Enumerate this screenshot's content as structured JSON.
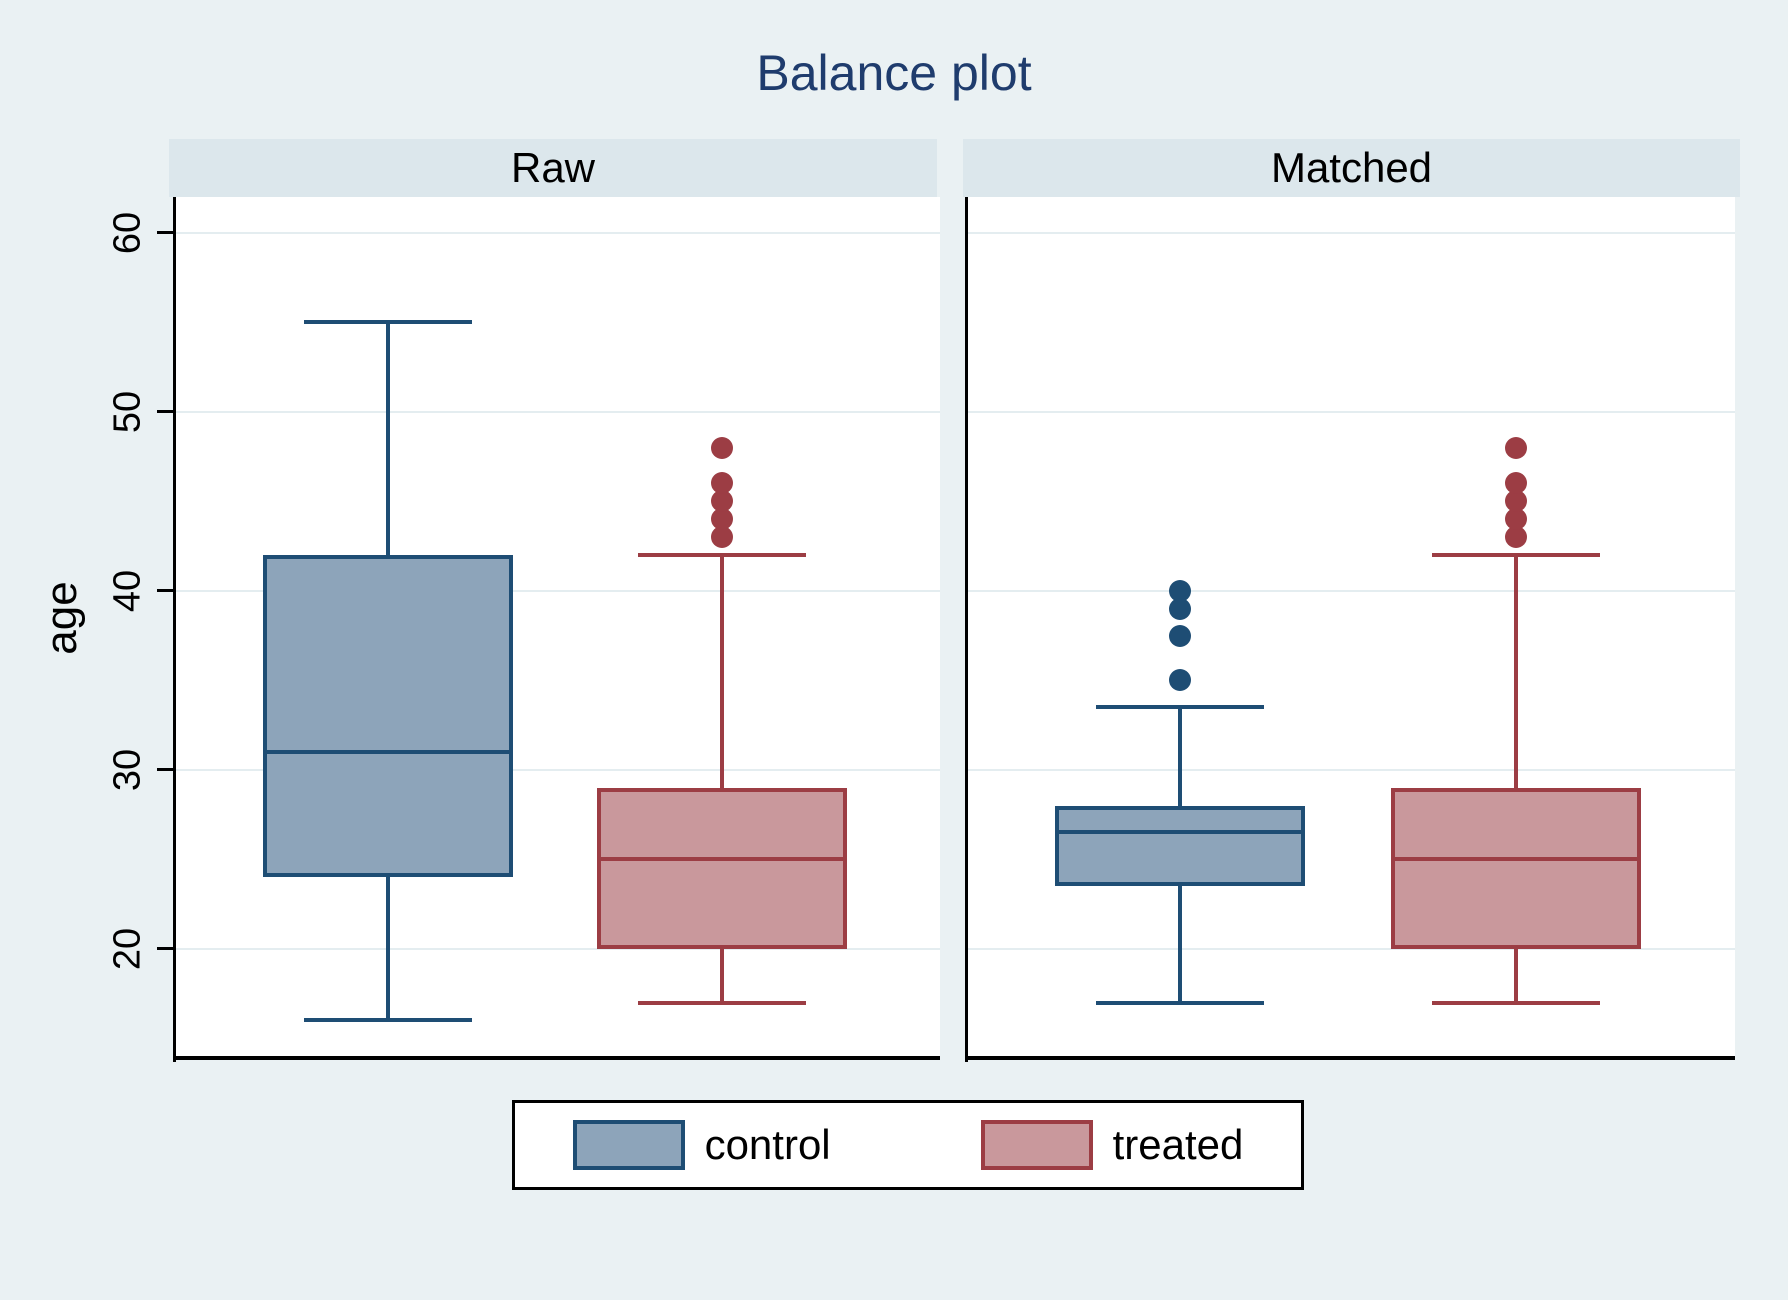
{
  "title": "Balance plot",
  "y_axis": {
    "label": "age",
    "ticks": [
      20,
      30,
      40,
      50,
      60
    ]
  },
  "legend": {
    "items": [
      {
        "label": "control"
      },
      {
        "label": "treated"
      }
    ]
  },
  "colors": {
    "background": "#eaf1f3",
    "strip_bg": "#dce7ec",
    "plot_bg": "#ffffff",
    "gridline": "#e4edf0",
    "axis_line": "#000000",
    "title_text": "#1f3c6d",
    "control_border": "#1e4d74",
    "control_fill": "#8da4ba",
    "treated_border": "#9c3d44",
    "treated_fill": "#c9989c"
  },
  "chart_data": {
    "type": "boxplot",
    "title": "Balance plot",
    "ylabel": "age",
    "ylim": [
      13.9,
      62.0
    ],
    "yticks": [
      20,
      30,
      40,
      50,
      60
    ],
    "grid": true,
    "legend_position": "bottom",
    "series_colors": {
      "control": "#1e4d74",
      "treated": "#9c3d44"
    },
    "panels": [
      {
        "label": "Raw",
        "boxes": [
          {
            "group": "control",
            "min": 16,
            "q1": 24,
            "median": 31,
            "q3": 42,
            "max": 55,
            "outliers": []
          },
          {
            "group": "treated",
            "min": 17,
            "q1": 20,
            "median": 25,
            "q3": 29,
            "max": 42,
            "outliers": [
              43,
              44,
              45,
              46,
              48
            ]
          }
        ]
      },
      {
        "label": "Matched",
        "boxes": [
          {
            "group": "control",
            "min": 17,
            "q1": 23.5,
            "median": 26.5,
            "q3": 28,
            "max": 33.5,
            "outliers": [
              35,
              37.5,
              39,
              40
            ]
          },
          {
            "group": "treated",
            "min": 17,
            "q1": 20,
            "median": 25,
            "q3": 29,
            "max": 42,
            "outliers": [
              43,
              44,
              45,
              46,
              48
            ]
          }
        ]
      }
    ]
  }
}
